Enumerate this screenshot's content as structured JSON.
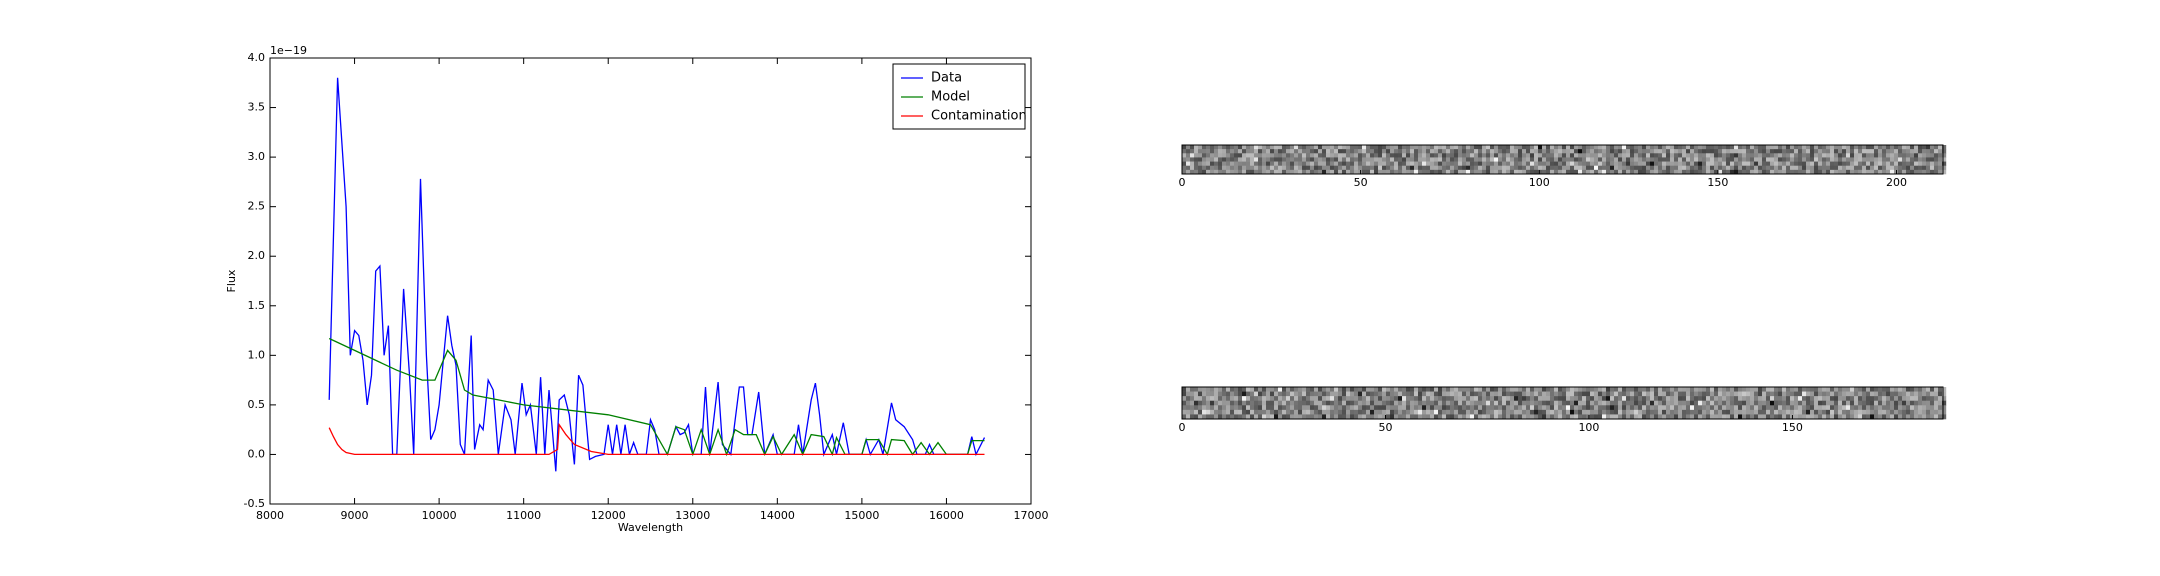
{
  "chart_data": [
    {
      "type": "line",
      "x_label": "Wavelength",
      "y_label": "Flux",
      "y_offset_label": "1e−19",
      "xlim": [
        8000,
        17000
      ],
      "xticks": [
        8000,
        9000,
        10000,
        11000,
        12000,
        13000,
        14000,
        15000,
        16000,
        17000
      ],
      "ylim": [
        -0.5,
        4.0
      ],
      "yticks": [
        -0.5,
        0.0,
        0.5,
        1.0,
        1.5,
        2.0,
        2.5,
        3.0,
        3.5,
        4.0
      ],
      "legend": "upper right",
      "series": [
        {
          "name": "Data",
          "color": "#0000ff",
          "x": [
            8700,
            8800,
            8900,
            8950,
            9000,
            9050,
            9100,
            9150,
            9200,
            9250,
            9300,
            9350,
            9400,
            9450,
            9500,
            9580,
            9650,
            9700,
            9780,
            9850,
            9900,
            9950,
            10000,
            10050,
            10100,
            10150,
            10200,
            10250,
            10300,
            10380,
            10420,
            10480,
            10520,
            10580,
            10640,
            10700,
            10780,
            10850,
            10900,
            10980,
            11030,
            11080,
            11150,
            11200,
            11250,
            11300,
            11380,
            11420,
            11480,
            11540,
            11600,
            11650,
            11700,
            11780,
            11850,
            11950,
            12000,
            12050,
            12100,
            12150,
            12200,
            12250,
            12300,
            12350,
            12450,
            12500,
            12550,
            12600,
            12700,
            12800,
            12850,
            12900,
            12950,
            13000,
            13100,
            13150,
            13200,
            13300,
            13350,
            13450,
            13550,
            13600,
            13650,
            13700,
            13780,
            13850,
            13950,
            14000,
            14200,
            14250,
            14300,
            14400,
            14450,
            14500,
            14550,
            14650,
            14700,
            14780,
            14850,
            15000,
            15050,
            15100,
            15200,
            15250,
            15350,
            15400,
            15500,
            15600,
            15650,
            15750,
            15800,
            15850,
            16250,
            16300,
            16350,
            16450
          ],
          "values": [
            0.55,
            3.8,
            2.5,
            1.0,
            1.25,
            1.2,
            0.95,
            0.5,
            0.8,
            1.85,
            1.9,
            1.0,
            1.3,
            0.0,
            0.0,
            1.67,
            0.8,
            0.0,
            2.78,
            1.0,
            0.15,
            0.25,
            0.5,
            0.95,
            1.4,
            1.1,
            0.9,
            0.1,
            0.0,
            1.2,
            0.05,
            0.3,
            0.25,
            0.75,
            0.65,
            0.0,
            0.5,
            0.35,
            0.0,
            0.72,
            0.4,
            0.5,
            0.0,
            0.78,
            0.0,
            0.65,
            -0.17,
            0.55,
            0.6,
            0.4,
            -0.1,
            0.8,
            0.7,
            -0.05,
            -0.02,
            0.0,
            0.3,
            0.0,
            0.3,
            0.0,
            0.3,
            0.0,
            0.12,
            0.0,
            0.0,
            0.35,
            0.25,
            0.0,
            0.0,
            0.28,
            0.2,
            0.22,
            0.3,
            0.0,
            0.0,
            0.68,
            0.0,
            0.73,
            0.1,
            0.0,
            0.68,
            0.68,
            0.2,
            0.2,
            0.63,
            0.0,
            0.2,
            0.0,
            0.0,
            0.3,
            0.0,
            0.55,
            0.72,
            0.4,
            0.0,
            0.2,
            0.0,
            0.32,
            0.0,
            0.0,
            0.15,
            0.0,
            0.15,
            0.0,
            0.52,
            0.35,
            0.28,
            0.15,
            0.0,
            0.0,
            0.1,
            0.0,
            0.0,
            0.18,
            0.0,
            0.17
          ]
        },
        {
          "name": "Model",
          "color": "#008000",
          "x": [
            8700,
            9000,
            9500,
            9800,
            9950,
            10100,
            10200,
            10300,
            10400,
            10700,
            11000,
            12000,
            12500,
            12700,
            12800,
            12900,
            13000,
            13100,
            13200,
            13300,
            13400,
            13500,
            13600,
            13750,
            13850,
            13950,
            14050,
            14200,
            14300,
            14400,
            14550,
            14650,
            14700,
            14800,
            15000,
            15050,
            15200,
            15300,
            15350,
            15500,
            15600,
            15700,
            15800,
            15900,
            16000,
            16250,
            16300,
            16450
          ],
          "values": [
            1.17,
            1.05,
            0.85,
            0.75,
            0.75,
            1.05,
            0.95,
            0.65,
            0.6,
            0.55,
            0.5,
            0.4,
            0.3,
            0.0,
            0.28,
            0.25,
            0.0,
            0.25,
            0.0,
            0.25,
            0.0,
            0.25,
            0.2,
            0.2,
            0.0,
            0.18,
            0.0,
            0.2,
            0.0,
            0.2,
            0.18,
            0.0,
            0.17,
            0.0,
            0.0,
            0.15,
            0.15,
            0.0,
            0.15,
            0.14,
            0.0,
            0.12,
            0.0,
            0.12,
            0.0,
            0.0,
            0.14,
            0.14
          ]
        },
        {
          "name": "Contamination",
          "color": "#ff0000",
          "x": [
            8700,
            8750,
            8800,
            8850,
            8900,
            9000,
            11300,
            11400,
            11420,
            11500,
            11600,
            11800,
            12000,
            16450
          ],
          "values": [
            0.27,
            0.18,
            0.1,
            0.05,
            0.02,
            0.0,
            0.0,
            0.05,
            0.3,
            0.2,
            0.1,
            0.03,
            0.0,
            0.0
          ]
        }
      ]
    },
    {
      "type": "image",
      "xlim": [
        0,
        213
      ],
      "xticks": [
        0,
        50,
        100,
        150,
        200
      ]
    },
    {
      "type": "image",
      "xlim": [
        0,
        187
      ],
      "xticks": [
        0,
        50,
        100,
        150
      ]
    }
  ]
}
